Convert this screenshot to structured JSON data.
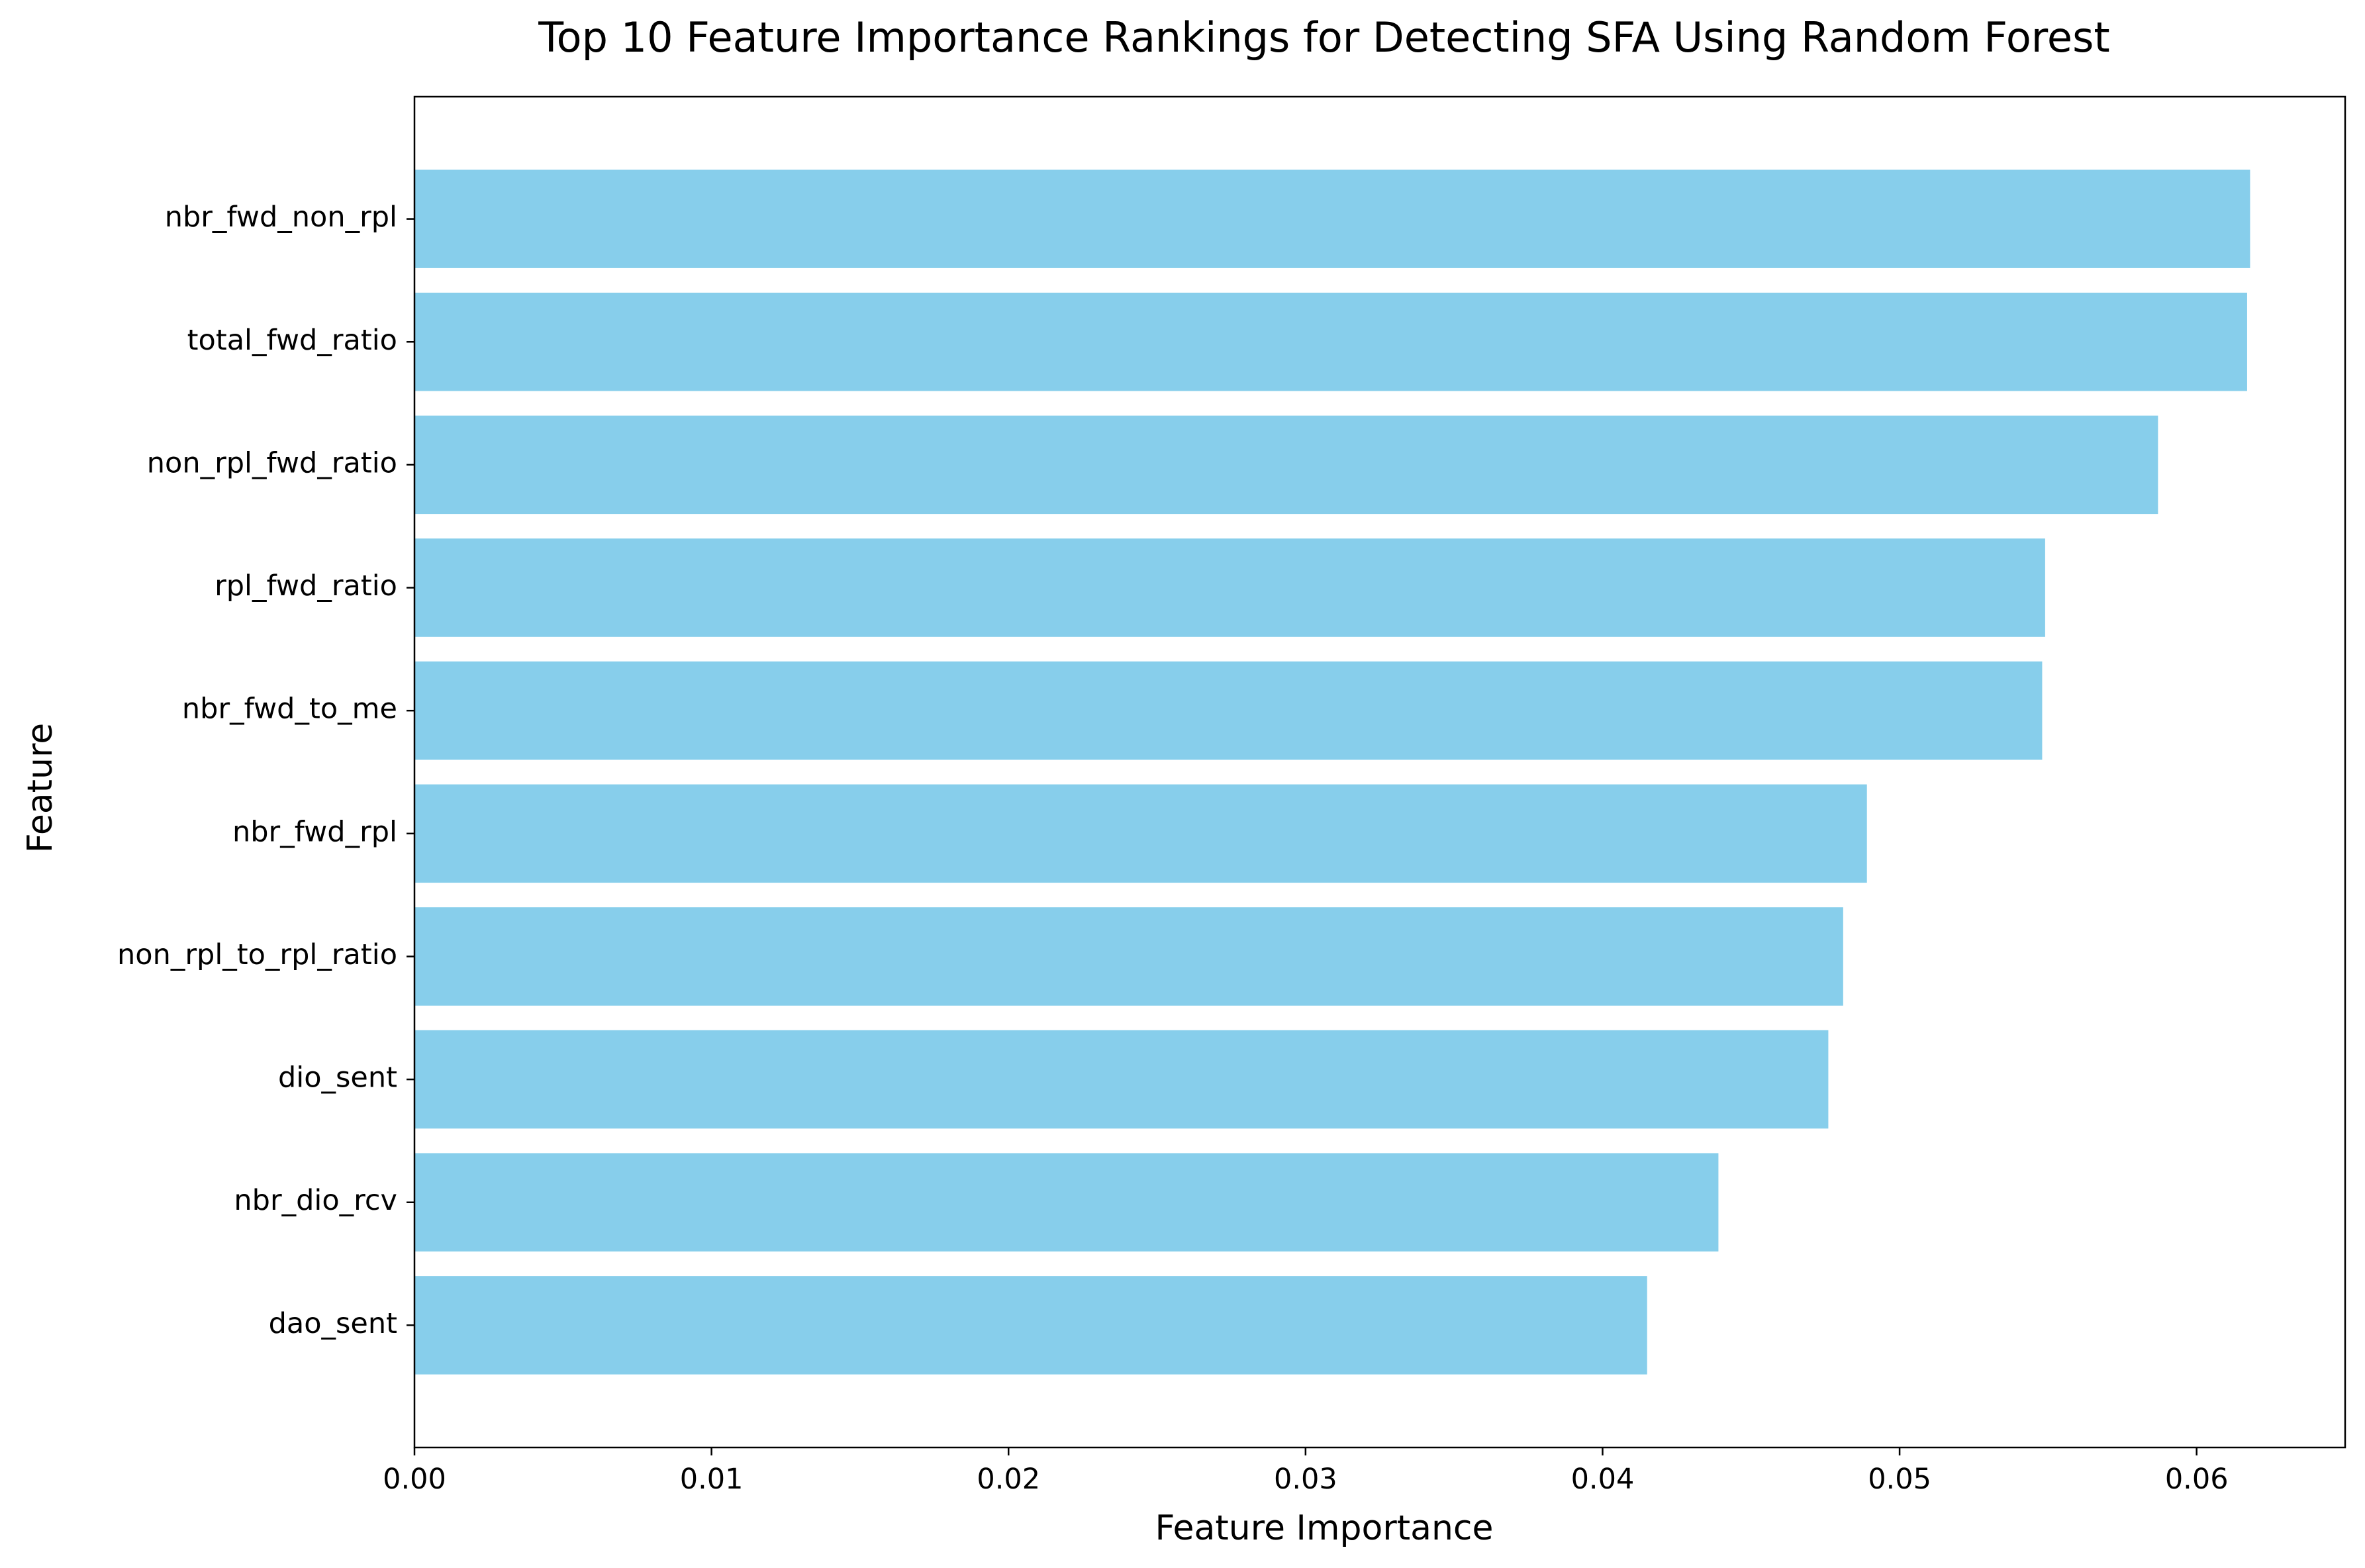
{
  "chart_data": {
    "type": "bar",
    "orientation": "horizontal",
    "title": "Top 10 Feature Importance Rankings for Detecting SFA Using Random Forest",
    "xlabel": "Feature Importance",
    "ylabel": "Feature",
    "categories": [
      "nbr_fwd_non_rpl",
      "total_fwd_ratio",
      "non_rpl_fwd_ratio",
      "rpl_fwd_ratio",
      "nbr_fwd_to_me",
      "nbr_fwd_rpl",
      "non_rpl_to_rpl_ratio",
      "dio_sent",
      "nbr_dio_rcv",
      "dao_sent"
    ],
    "values": [
      0.0618,
      0.0617,
      0.0587,
      0.0549,
      0.0548,
      0.0489,
      0.0481,
      0.0476,
      0.0439,
      0.0415
    ],
    "xlim": [
      0,
      0.065
    ],
    "xticks": [
      0.0,
      0.01,
      0.02,
      0.03,
      0.04,
      0.05,
      0.06
    ],
    "xtick_labels": [
      "0.00",
      "0.01",
      "0.02",
      "0.03",
      "0.04",
      "0.05",
      "0.06"
    ],
    "bar_color": "#87CEEB",
    "grid": false,
    "legend": "none"
  }
}
